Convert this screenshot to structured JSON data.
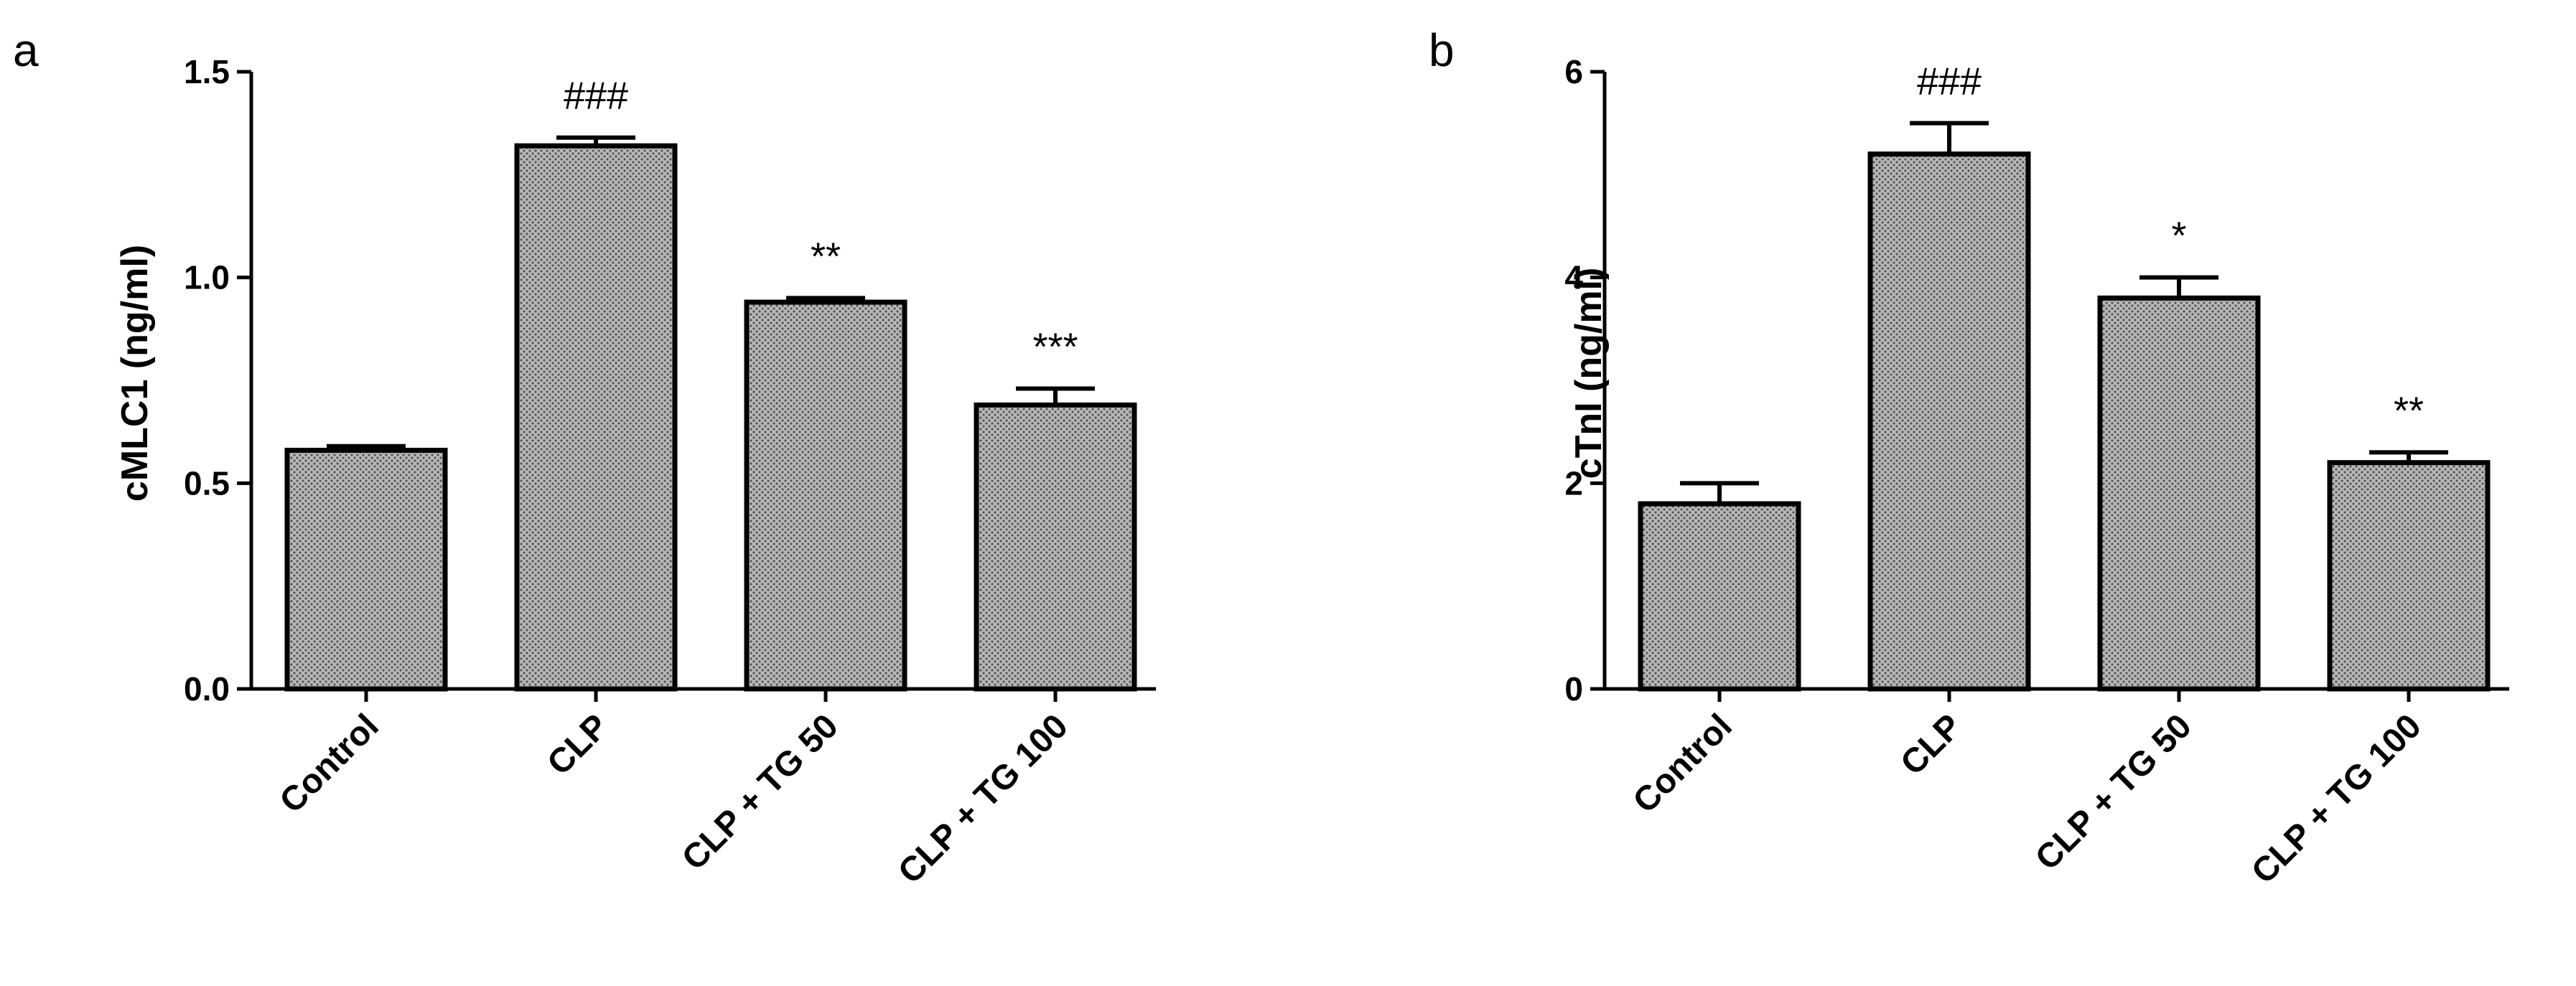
{
  "chart_data": [
    {
      "panel": "a",
      "type": "bar",
      "ylabel": "cMLC1 (ng/ml)",
      "ylim": [
        0,
        1.5
      ],
      "yticks": [
        "0.0",
        "0.5",
        "1.0",
        "1.5"
      ],
      "categories": [
        "Control",
        "CLP",
        "CLP + TG 50",
        "CLP + TG 100"
      ],
      "values": [
        0.58,
        1.32,
        0.94,
        0.69
      ],
      "errors": [
        0.01,
        0.02,
        0.01,
        0.04
      ],
      "annotations": [
        "",
        "###",
        "**",
        "***"
      ]
    },
    {
      "panel": "b",
      "type": "bar",
      "ylabel": "cTnI (ng/ml)",
      "ylim": [
        0,
        6
      ],
      "yticks": [
        "0",
        "2",
        "4",
        "6"
      ],
      "categories": [
        "Control",
        "CLP",
        "CLP + TG 50",
        "CLP + TG 100"
      ],
      "values": [
        1.8,
        5.2,
        3.8,
        2.2
      ],
      "errors": [
        0.2,
        0.3,
        0.2,
        0.1
      ],
      "annotations": [
        "",
        "###",
        "*",
        "**"
      ]
    }
  ],
  "colors": {
    "bar_fill": "#9a9a9a",
    "bar_edge": "#000000"
  }
}
